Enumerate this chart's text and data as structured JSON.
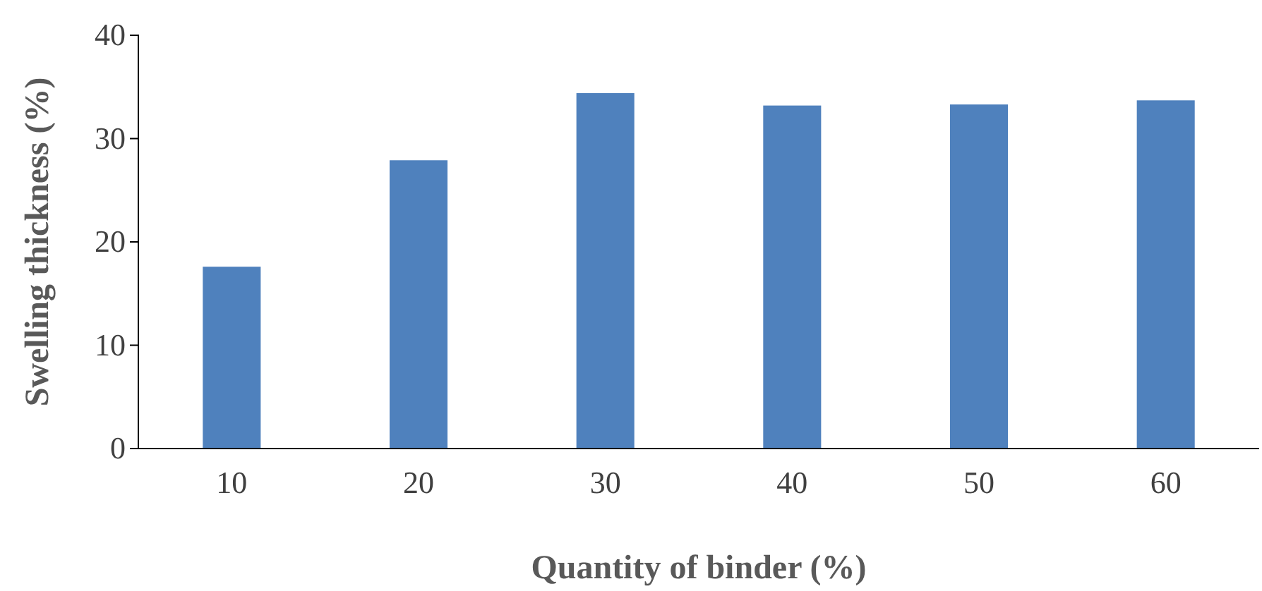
{
  "chart_data": {
    "type": "bar",
    "xlabel": "Quantity of binder (%)",
    "ylabel": "Swelling thickness (%)",
    "categories": [
      "10",
      "20",
      "30",
      "40",
      "50",
      "60"
    ],
    "values": [
      17.6,
      27.9,
      34.4,
      33.2,
      33.3,
      33.7
    ],
    "color": "#4f81bd",
    "ylim": [
      0,
      40
    ],
    "yticks": [
      0,
      10,
      20,
      30,
      40
    ],
    "grid": false
  }
}
